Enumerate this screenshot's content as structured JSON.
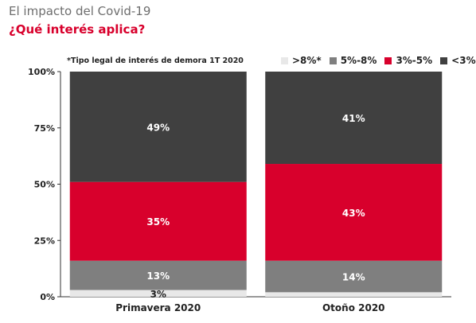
{
  "header": {
    "title": "El impacto del Covid-19",
    "subtitle": "¿Qué interés aplica?"
  },
  "note": "*Tipo legal de interés de demora 1T 2020",
  "legend": [
    {
      "label": ">8%*",
      "color": "#e8e8e8"
    },
    {
      "label": "5%-8%",
      "color": "#7f7f7f"
    },
    {
      "label": "3%-5%",
      "color": "#d8002c"
    },
    {
      "label": "<3%",
      "color": "#404040"
    }
  ],
  "chart_data": {
    "type": "bar",
    "stacked": true,
    "categories": [
      "Primavera 2020",
      "Otoño 2020"
    ],
    "series": [
      {
        "name": ">8%*",
        "values": [
          3,
          2
        ],
        "labels": [
          "3%",
          ""
        ],
        "color": "#e8e8e8",
        "label_color": "#222222"
      },
      {
        "name": "5%-8%",
        "values": [
          13,
          14
        ],
        "labels": [
          "13%",
          "14%"
        ],
        "color": "#7f7f7f",
        "label_color": "#ffffff"
      },
      {
        "name": "3%-5%",
        "values": [
          35,
          43
        ],
        "labels": [
          "35%",
          "43%"
        ],
        "color": "#d8002c",
        "label_color": "#ffffff"
      },
      {
        "name": "<3%",
        "values": [
          49,
          41
        ],
        "labels": [
          "49%",
          "41%"
        ],
        "color": "#404040",
        "label_color": "#ffffff"
      }
    ],
    "yticks": [
      "0%",
      "25%",
      "50%",
      "75%",
      "100%"
    ],
    "ylim": [
      0,
      100
    ],
    "grid": false,
    "legend_position": "top-right"
  }
}
